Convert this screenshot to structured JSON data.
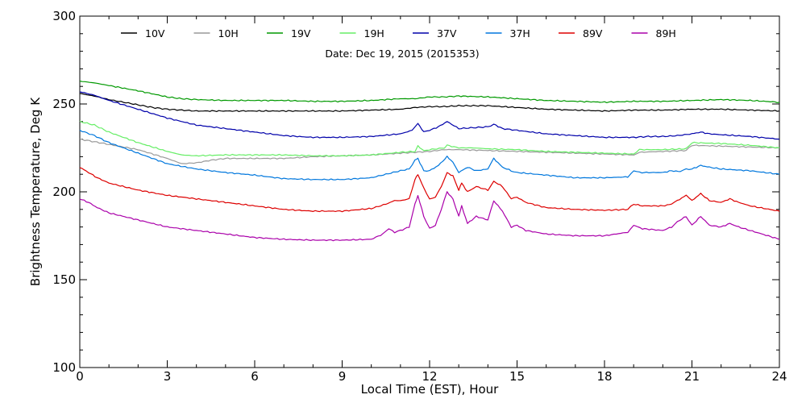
{
  "chart_data": {
    "type": "line",
    "title": "",
    "subtitle": "Date: Dec 19, 2015 (2015353)",
    "xlabel": "Local Time (EST), Hour",
    "ylabel": "Brightness Temperature, Deg K",
    "xlim": [
      0,
      24
    ],
    "ylim": [
      100,
      300
    ],
    "xticks": [
      0,
      3,
      6,
      9,
      12,
      15,
      18,
      21,
      24
    ],
    "yticks": [
      100,
      150,
      200,
      250,
      300
    ],
    "grid": false,
    "legend_position": "top",
    "series": [
      {
        "name": "10V",
        "color": "#000000",
        "points": [
          [
            0,
            256
          ],
          [
            0.5,
            254.5
          ],
          [
            1,
            252.5
          ],
          [
            1.5,
            251
          ],
          [
            2,
            249.5
          ],
          [
            2.5,
            248
          ],
          [
            3,
            247
          ],
          [
            3.5,
            246.5
          ],
          [
            4,
            246
          ],
          [
            5,
            246
          ],
          [
            6,
            246
          ],
          [
            7,
            246
          ],
          [
            8,
            246
          ],
          [
            9,
            246
          ],
          [
            10,
            246.5
          ],
          [
            11,
            247
          ],
          [
            11.5,
            248
          ],
          [
            12,
            248.5
          ],
          [
            12.5,
            248.5
          ],
          [
            13,
            249
          ],
          [
            13.5,
            249
          ],
          [
            14,
            249
          ],
          [
            15,
            248
          ],
          [
            16,
            247
          ],
          [
            17,
            246.5
          ],
          [
            18,
            246
          ],
          [
            19,
            246.5
          ],
          [
            20,
            246.5
          ],
          [
            21,
            247
          ],
          [
            22,
            247
          ],
          [
            23,
            246.5
          ],
          [
            24,
            246
          ]
        ]
      },
      {
        "name": "10H",
        "color": "#999999",
        "points": [
          [
            0,
            230
          ],
          [
            0.5,
            228.5
          ],
          [
            1,
            227
          ],
          [
            2,
            224
          ],
          [
            3,
            219
          ],
          [
            3.5,
            216
          ],
          [
            4,
            216.5
          ],
          [
            4.5,
            218
          ],
          [
            5,
            219
          ],
          [
            6,
            219
          ],
          [
            7,
            219
          ],
          [
            8,
            220
          ],
          [
            9,
            220.5
          ],
          [
            10,
            221
          ],
          [
            11,
            222
          ],
          [
            11.5,
            222.5
          ],
          [
            12,
            223
          ],
          [
            12.5,
            224
          ],
          [
            13,
            224
          ],
          [
            14,
            223.5
          ],
          [
            15,
            223
          ],
          [
            16,
            222.5
          ],
          [
            17,
            222
          ],
          [
            18,
            221.5
          ],
          [
            19,
            221
          ],
          [
            19.2,
            222.5
          ],
          [
            20,
            223
          ],
          [
            20.8,
            223.5
          ],
          [
            21,
            226.5
          ],
          [
            22,
            226
          ],
          [
            23,
            225.5
          ],
          [
            24,
            225
          ]
        ]
      },
      {
        "name": "19V",
        "color": "#009900",
        "points": [
          [
            0,
            263
          ],
          [
            0.5,
            262
          ],
          [
            1,
            260.5
          ],
          [
            2,
            257.5
          ],
          [
            3,
            254
          ],
          [
            3.5,
            253
          ],
          [
            4,
            252.5
          ],
          [
            5,
            252
          ],
          [
            6,
            252
          ],
          [
            7,
            252
          ],
          [
            8,
            251.5
          ],
          [
            9,
            251.5
          ],
          [
            10,
            252
          ],
          [
            11,
            253
          ],
          [
            11.5,
            253
          ],
          [
            12,
            254
          ],
          [
            12.5,
            254
          ],
          [
            13,
            254.5
          ],
          [
            14,
            254
          ],
          [
            15,
            253
          ],
          [
            16,
            252
          ],
          [
            17,
            251.5
          ],
          [
            18,
            251
          ],
          [
            19,
            251.5
          ],
          [
            20,
            251.5
          ],
          [
            21,
            252
          ],
          [
            22,
            252.5
          ],
          [
            23,
            252
          ],
          [
            24,
            251
          ]
        ]
      },
      {
        "name": "19H",
        "color": "#66ee66",
        "points": [
          [
            0,
            240
          ],
          [
            0.5,
            238
          ],
          [
            1,
            234
          ],
          [
            2,
            228
          ],
          [
            3,
            223
          ],
          [
            3.5,
            221
          ],
          [
            4,
            220.5
          ],
          [
            5,
            221
          ],
          [
            6,
            221
          ],
          [
            7,
            221
          ],
          [
            8,
            220.5
          ],
          [
            9,
            220.5
          ],
          [
            10,
            221
          ],
          [
            11,
            222.5
          ],
          [
            11.5,
            223
          ],
          [
            11.6,
            226
          ],
          [
            11.8,
            223.5
          ],
          [
            12,
            224
          ],
          [
            12.5,
            225
          ],
          [
            12.6,
            226.5
          ],
          [
            13,
            225
          ],
          [
            13.5,
            225
          ],
          [
            14,
            224.5
          ],
          [
            15,
            224
          ],
          [
            16,
            223
          ],
          [
            17,
            222.5
          ],
          [
            18,
            222
          ],
          [
            19,
            221.5
          ],
          [
            19.2,
            224
          ],
          [
            20,
            224
          ],
          [
            20.8,
            224.5
          ],
          [
            21,
            228
          ],
          [
            22,
            227.5
          ],
          [
            23,
            226.5
          ],
          [
            24,
            225
          ]
        ]
      },
      {
        "name": "37V",
        "color": "#0000aa",
        "points": [
          [
            0,
            257
          ],
          [
            0.5,
            255
          ],
          [
            1,
            252
          ],
          [
            2,
            247
          ],
          [
            3,
            242
          ],
          [
            4,
            238
          ],
          [
            5,
            236
          ],
          [
            6,
            234
          ],
          [
            7,
            232
          ],
          [
            8,
            231
          ],
          [
            9,
            231
          ],
          [
            10,
            231.5
          ],
          [
            11,
            233
          ],
          [
            11.4,
            235
          ],
          [
            11.6,
            239
          ],
          [
            11.8,
            234
          ],
          [
            12,
            235
          ],
          [
            12.3,
            237
          ],
          [
            12.6,
            240
          ],
          [
            13,
            236
          ],
          [
            13.5,
            236.5
          ],
          [
            14,
            237
          ],
          [
            14.2,
            238.5
          ],
          [
            14.5,
            236
          ],
          [
            15,
            235
          ],
          [
            16,
            233
          ],
          [
            17,
            232
          ],
          [
            18,
            231
          ],
          [
            19,
            231
          ],
          [
            19.5,
            231.5
          ],
          [
            20,
            231.5
          ],
          [
            20.5,
            232
          ],
          [
            21,
            233
          ],
          [
            21.3,
            234
          ],
          [
            21.6,
            233
          ],
          [
            22,
            232.5
          ],
          [
            23,
            231.5
          ],
          [
            24,
            230
          ]
        ]
      },
      {
        "name": "37H",
        "color": "#0077dd",
        "points": [
          [
            0,
            235
          ],
          [
            0.5,
            232
          ],
          [
            1,
            228
          ],
          [
            2,
            222
          ],
          [
            3,
            216
          ],
          [
            4,
            213
          ],
          [
            5,
            211
          ],
          [
            6,
            209.5
          ],
          [
            7,
            207.5
          ],
          [
            8,
            207
          ],
          [
            9,
            207
          ],
          [
            10,
            208
          ],
          [
            10.5,
            210
          ],
          [
            11,
            212
          ],
          [
            11.3,
            213
          ],
          [
            11.5,
            218
          ],
          [
            11.6,
            219
          ],
          [
            11.8,
            212
          ],
          [
            12,
            212
          ],
          [
            12.3,
            215
          ],
          [
            12.6,
            220
          ],
          [
            12.8,
            217
          ],
          [
            13,
            211
          ],
          [
            13.3,
            214
          ],
          [
            13.6,
            212
          ],
          [
            14,
            213
          ],
          [
            14.2,
            219
          ],
          [
            14.5,
            214
          ],
          [
            14.8,
            212
          ],
          [
            15,
            211
          ],
          [
            16,
            209.5
          ],
          [
            17,
            208
          ],
          [
            18,
            208
          ],
          [
            18.8,
            208.5
          ],
          [
            19,
            212
          ],
          [
            19.2,
            211
          ],
          [
            20,
            211
          ],
          [
            20.3,
            212
          ],
          [
            20.6,
            211.5
          ],
          [
            20.8,
            213
          ],
          [
            21,
            213
          ],
          [
            21.3,
            215
          ],
          [
            21.6,
            214
          ],
          [
            22,
            213
          ],
          [
            23,
            212
          ],
          [
            24,
            210
          ]
        ]
      },
      {
        "name": "89V",
        "color": "#dd0000",
        "points": [
          [
            0,
            214
          ],
          [
            0.3,
            211
          ],
          [
            0.6,
            208
          ],
          [
            1,
            205
          ],
          [
            2,
            201
          ],
          [
            3,
            198
          ],
          [
            4,
            196
          ],
          [
            5,
            194
          ],
          [
            6,
            192
          ],
          [
            7,
            190
          ],
          [
            8,
            189
          ],
          [
            9,
            189
          ],
          [
            10,
            190.5
          ],
          [
            10.5,
            193
          ],
          [
            10.8,
            195
          ],
          [
            11,
            195
          ],
          [
            11.3,
            196
          ],
          [
            11.5,
            207
          ],
          [
            11.6,
            210
          ],
          [
            11.8,
            202
          ],
          [
            12,
            196
          ],
          [
            12.2,
            197
          ],
          [
            12.4,
            203
          ],
          [
            12.6,
            211
          ],
          [
            12.8,
            209
          ],
          [
            13,
            201
          ],
          [
            13.1,
            205
          ],
          [
            13.3,
            200
          ],
          [
            13.6,
            203
          ],
          [
            14,
            201
          ],
          [
            14.2,
            206
          ],
          [
            14.5,
            203
          ],
          [
            14.8,
            196
          ],
          [
            15,
            197
          ],
          [
            15.3,
            194
          ],
          [
            16,
            191
          ],
          [
            17,
            190
          ],
          [
            18,
            189.5
          ],
          [
            18.8,
            190
          ],
          [
            19,
            193
          ],
          [
            19.3,
            192
          ],
          [
            20,
            192
          ],
          [
            20.3,
            193
          ],
          [
            20.5,
            195
          ],
          [
            20.8,
            198
          ],
          [
            21,
            195
          ],
          [
            21.3,
            199
          ],
          [
            21.6,
            195
          ],
          [
            22,
            194
          ],
          [
            22.3,
            196
          ],
          [
            22.6,
            194
          ],
          [
            23,
            192
          ],
          [
            24,
            189
          ]
        ]
      },
      {
        "name": "89H",
        "color": "#aa00aa",
        "points": [
          [
            0,
            196
          ],
          [
            0.3,
            194
          ],
          [
            0.6,
            191
          ],
          [
            1,
            188
          ],
          [
            2,
            184
          ],
          [
            3,
            180
          ],
          [
            4,
            178
          ],
          [
            5,
            176
          ],
          [
            6,
            174
          ],
          [
            7,
            173
          ],
          [
            8,
            172.5
          ],
          [
            9,
            172.5
          ],
          [
            10,
            173
          ],
          [
            10.4,
            176
          ],
          [
            10.6,
            179
          ],
          [
            10.8,
            177
          ],
          [
            11,
            178
          ],
          [
            11.3,
            180
          ],
          [
            11.5,
            193
          ],
          [
            11.6,
            198
          ],
          [
            11.8,
            186
          ],
          [
            12,
            179
          ],
          [
            12.2,
            181
          ],
          [
            12.4,
            190
          ],
          [
            12.6,
            200
          ],
          [
            12.8,
            196
          ],
          [
            13,
            186
          ],
          [
            13.1,
            192
          ],
          [
            13.3,
            182
          ],
          [
            13.6,
            186
          ],
          [
            14,
            184
          ],
          [
            14.2,
            195
          ],
          [
            14.5,
            189
          ],
          [
            14.8,
            180
          ],
          [
            15,
            181
          ],
          [
            15.3,
            178
          ],
          [
            16,
            176
          ],
          [
            17,
            175
          ],
          [
            18,
            175
          ],
          [
            18.8,
            177
          ],
          [
            19,
            181
          ],
          [
            19.3,
            179
          ],
          [
            20,
            178
          ],
          [
            20.3,
            180
          ],
          [
            20.5,
            183
          ],
          [
            20.8,
            186
          ],
          [
            21,
            181
          ],
          [
            21.3,
            186
          ],
          [
            21.6,
            181
          ],
          [
            22,
            180
          ],
          [
            22.3,
            182
          ],
          [
            22.6,
            180
          ],
          [
            23,
            178
          ],
          [
            24,
            173
          ]
        ]
      }
    ]
  }
}
